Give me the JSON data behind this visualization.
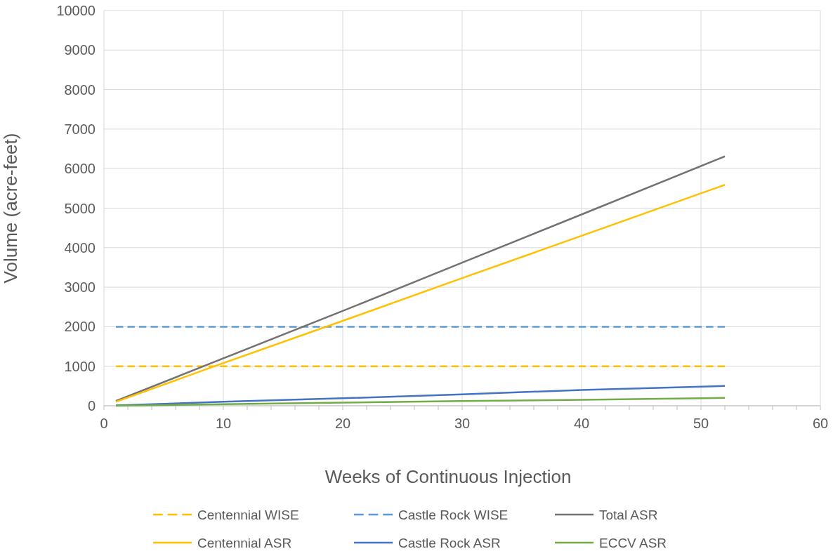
{
  "chart_data": {
    "type": "line",
    "xlabel": "Weeks of Continuous Injection",
    "ylabel": "Volume (acre-feet)",
    "xlim": [
      0,
      60
    ],
    "ylim": [
      0,
      10000
    ],
    "xticks": [
      0,
      {
        "value": 2,
        "label": null
      },
      {
        "value": 4,
        "label": null
      },
      {
        "value": 6,
        "label": null
      },
      {
        "value": 8,
        "label": null
      },
      10,
      {
        "value": 12,
        "label": null
      },
      {
        "value": 14,
        "label": null
      },
      {
        "value": 16,
        "label": null
      },
      {
        "value": 18,
        "label": null
      },
      20,
      {
        "value": 22,
        "label": null
      },
      {
        "value": 24,
        "label": null
      },
      {
        "value": 26,
        "label": null
      },
      {
        "value": 28,
        "label": null
      },
      30,
      {
        "value": 32,
        "label": null
      },
      {
        "value": 34,
        "label": null
      },
      {
        "value": 36,
        "label": null
      },
      {
        "value": 38,
        "label": null
      },
      40,
      {
        "value": 42,
        "label": null
      },
      {
        "value": 44,
        "label": null
      },
      {
        "value": 46,
        "label": null
      },
      {
        "value": 48,
        "label": null
      },
      50,
      {
        "value": 52,
        "label": null
      },
      {
        "value": 54,
        "label": null
      },
      {
        "value": 56,
        "label": null
      },
      {
        "value": 58,
        "label": null
      },
      60
    ],
    "yticks": [
      0,
      1000,
      2000,
      3000,
      4000,
      5000,
      6000,
      7000,
      8000,
      9000,
      10000
    ],
    "grid": true,
    "legend": "bottom",
    "line_style": "solid",
    "marker": "none",
    "series": [
      {
        "name": "Centennial WISE",
        "color": "#ffc000",
        "line_style": "dashed",
        "x": [
          1,
          52
        ],
        "values": [
          1000,
          1000
        ]
      },
      {
        "name": "Castle Rock WISE",
        "color": "#5b9bd5",
        "line_style": "dashed",
        "x": [
          1,
          52
        ],
        "values": [
          2000,
          2000
        ]
      },
      {
        "name": "Total ASR",
        "color": "#767171",
        "x": [
          1,
          10,
          20,
          30,
          40,
          52
        ],
        "values": [
          120,
          1200,
          2400,
          3620,
          4840,
          6310
        ]
      },
      {
        "name": "Centennial ASR",
        "color": "#ffc000",
        "x": [
          1,
          10,
          20,
          30,
          40,
          52
        ],
        "values": [
          100,
          1080,
          2150,
          3230,
          4300,
          5590
        ]
      },
      {
        "name": "Castle Rock ASR",
        "color": "#4472c4",
        "x": [
          1,
          10,
          20,
          30,
          40,
          52
        ],
        "values": [
          10,
          100,
          190,
          290,
          400,
          500
        ]
      },
      {
        "name": "ECCV ASR",
        "color": "#70ad47",
        "x": [
          1,
          10,
          20,
          30,
          40,
          52
        ],
        "values": [
          0,
          40,
          80,
          120,
          150,
          200
        ]
      }
    ]
  }
}
